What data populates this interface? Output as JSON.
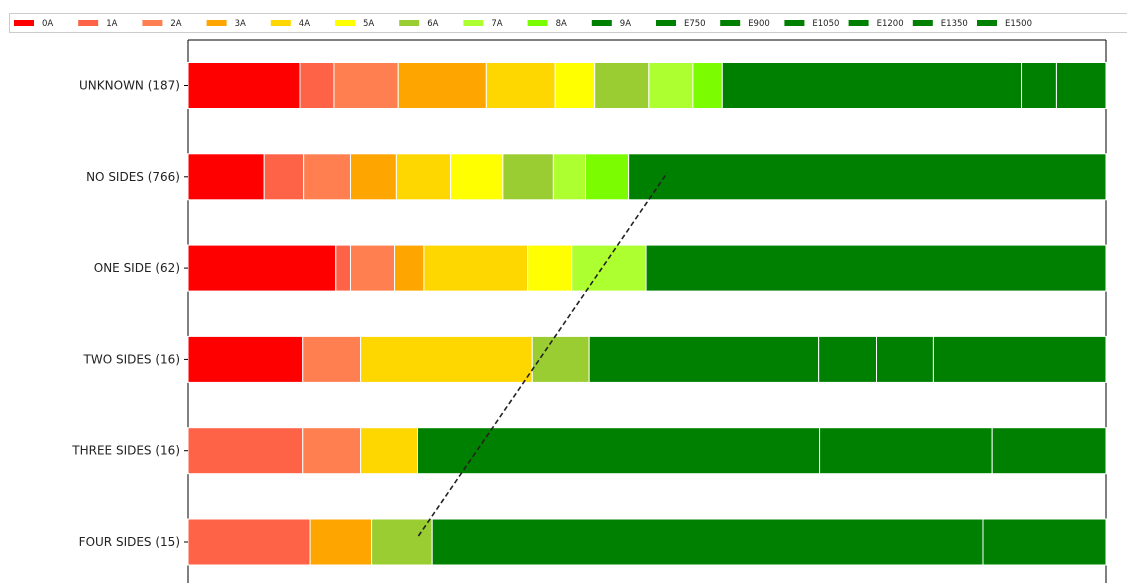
{
  "chart_data": {
    "type": "bar",
    "orientation": "horizontal",
    "stacked": true,
    "normalized": true,
    "categories": [
      "UNKNOWN (187)",
      "NO SIDES (766)",
      "ONE SIDE (62)",
      "TWO SIDES (16)",
      "THREE SIDES (16)",
      "FOUR SIDES (15)"
    ],
    "series": [
      {
        "name": "0A",
        "color": "#ff0000",
        "values": [
          0.122,
          0.083,
          0.161,
          0.125,
          0,
          0
        ]
      },
      {
        "name": "1A",
        "color": "#ff6347",
        "values": [
          0.037,
          0.043,
          0.016,
          0,
          0.125,
          0.133
        ]
      },
      {
        "name": "2A",
        "color": "#ff7f50",
        "values": [
          0.07,
          0.051,
          0.048,
          0.063,
          0.063,
          0
        ]
      },
      {
        "name": "3A",
        "color": "#ffa500",
        "values": [
          0.096,
          0.05,
          0.032,
          0,
          0,
          0.067
        ]
      },
      {
        "name": "4A",
        "color": "#ffd700",
        "values": [
          0.075,
          0.059,
          0.113,
          0.187,
          0.062,
          0
        ]
      },
      {
        "name": "5A",
        "color": "#ffff00",
        "values": [
          0.043,
          0.057,
          0.048,
          0,
          0,
          0
        ]
      },
      {
        "name": "6A",
        "color": "#9acd32",
        "values": [
          0.059,
          0.055,
          0,
          0.062,
          0,
          0.066
        ]
      },
      {
        "name": "7A",
        "color": "#adff2f",
        "values": [
          0.048,
          0.035,
          0.081,
          0,
          0,
          0
        ]
      },
      {
        "name": "8A",
        "color": "#7cfc00",
        "values": [
          0.032,
          0.047,
          0,
          0,
          0,
          0
        ]
      },
      {
        "name": "9A",
        "color": "#008000",
        "values": [
          0.326,
          0.52,
          0.501,
          0.25,
          0.438,
          0.6
        ]
      },
      {
        "name": "E750",
        "color": "#008000",
        "values": [
          0.038,
          0,
          0,
          0.063,
          0.188,
          0.134
        ]
      },
      {
        "name": "E900",
        "color": "#008000",
        "values": [
          0.054,
          0,
          0,
          0.062,
          0.124,
          0
        ]
      },
      {
        "name": "E1050",
        "color": "#008000",
        "values": [
          0,
          0,
          0,
          0.188,
          0,
          0
        ]
      },
      {
        "name": "E1200",
        "color": "#008000",
        "values": [
          0,
          0,
          0,
          0,
          0,
          0
        ]
      },
      {
        "name": "E1350",
        "color": "#008000",
        "values": [
          0,
          0,
          0,
          0,
          0,
          0
        ]
      },
      {
        "name": "E1500",
        "color": "#008000",
        "values": [
          0,
          0,
          0,
          0,
          0,
          0
        ]
      }
    ],
    "xlim": [
      0,
      1
    ],
    "grid": false,
    "legend_position": "top",
    "trend_line": {
      "style": "dashed",
      "color": "#222222",
      "from": {
        "category": "FOUR SIDES (15)",
        "x": 0.251
      },
      "to": {
        "category": "NO SIDES (766)",
        "x": 0.522
      }
    }
  }
}
